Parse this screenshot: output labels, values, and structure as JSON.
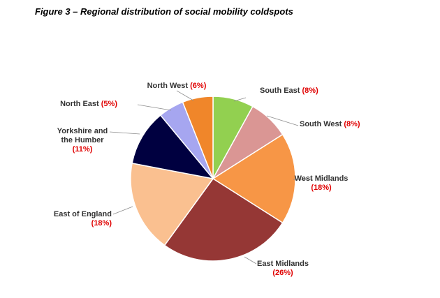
{
  "figure_title": "Figure 3 – Regional distribution of social mobility coldspots",
  "chart_data": {
    "type": "pie",
    "title": "Figure 3 – Regional distribution of social mobility coldspots",
    "start_angle_deg": 0,
    "direction": "clockwise",
    "slices": [
      {
        "label": "South East",
        "pct_text": "(8%)",
        "value": 8,
        "color": "#92d050"
      },
      {
        "label": "South West",
        "pct_text": "(8%)",
        "value": 8,
        "color": "#da9694"
      },
      {
        "label": "West Midlands",
        "pct_text": "(18%)",
        "value": 18,
        "color": "#f79646"
      },
      {
        "label": "East Midlands",
        "pct_text": "(26%)",
        "value": 26,
        "color": "#953735"
      },
      {
        "label": "East of England",
        "pct_text": "(18%)",
        "value": 18,
        "color": "#fac090"
      },
      {
        "label": "Yorkshire and the Humber",
        "pct_text": "(11%)",
        "value": 11,
        "color": "#000040"
      },
      {
        "label": "North East",
        "pct_text": "(5%)",
        "value": 5,
        "color": "#a6a6f0"
      },
      {
        "label": "North West",
        "pct_text": "(6%)",
        "value": 6,
        "color": "#f0862a"
      }
    ],
    "label_color": "#333333",
    "percent_color": "#e00000"
  }
}
